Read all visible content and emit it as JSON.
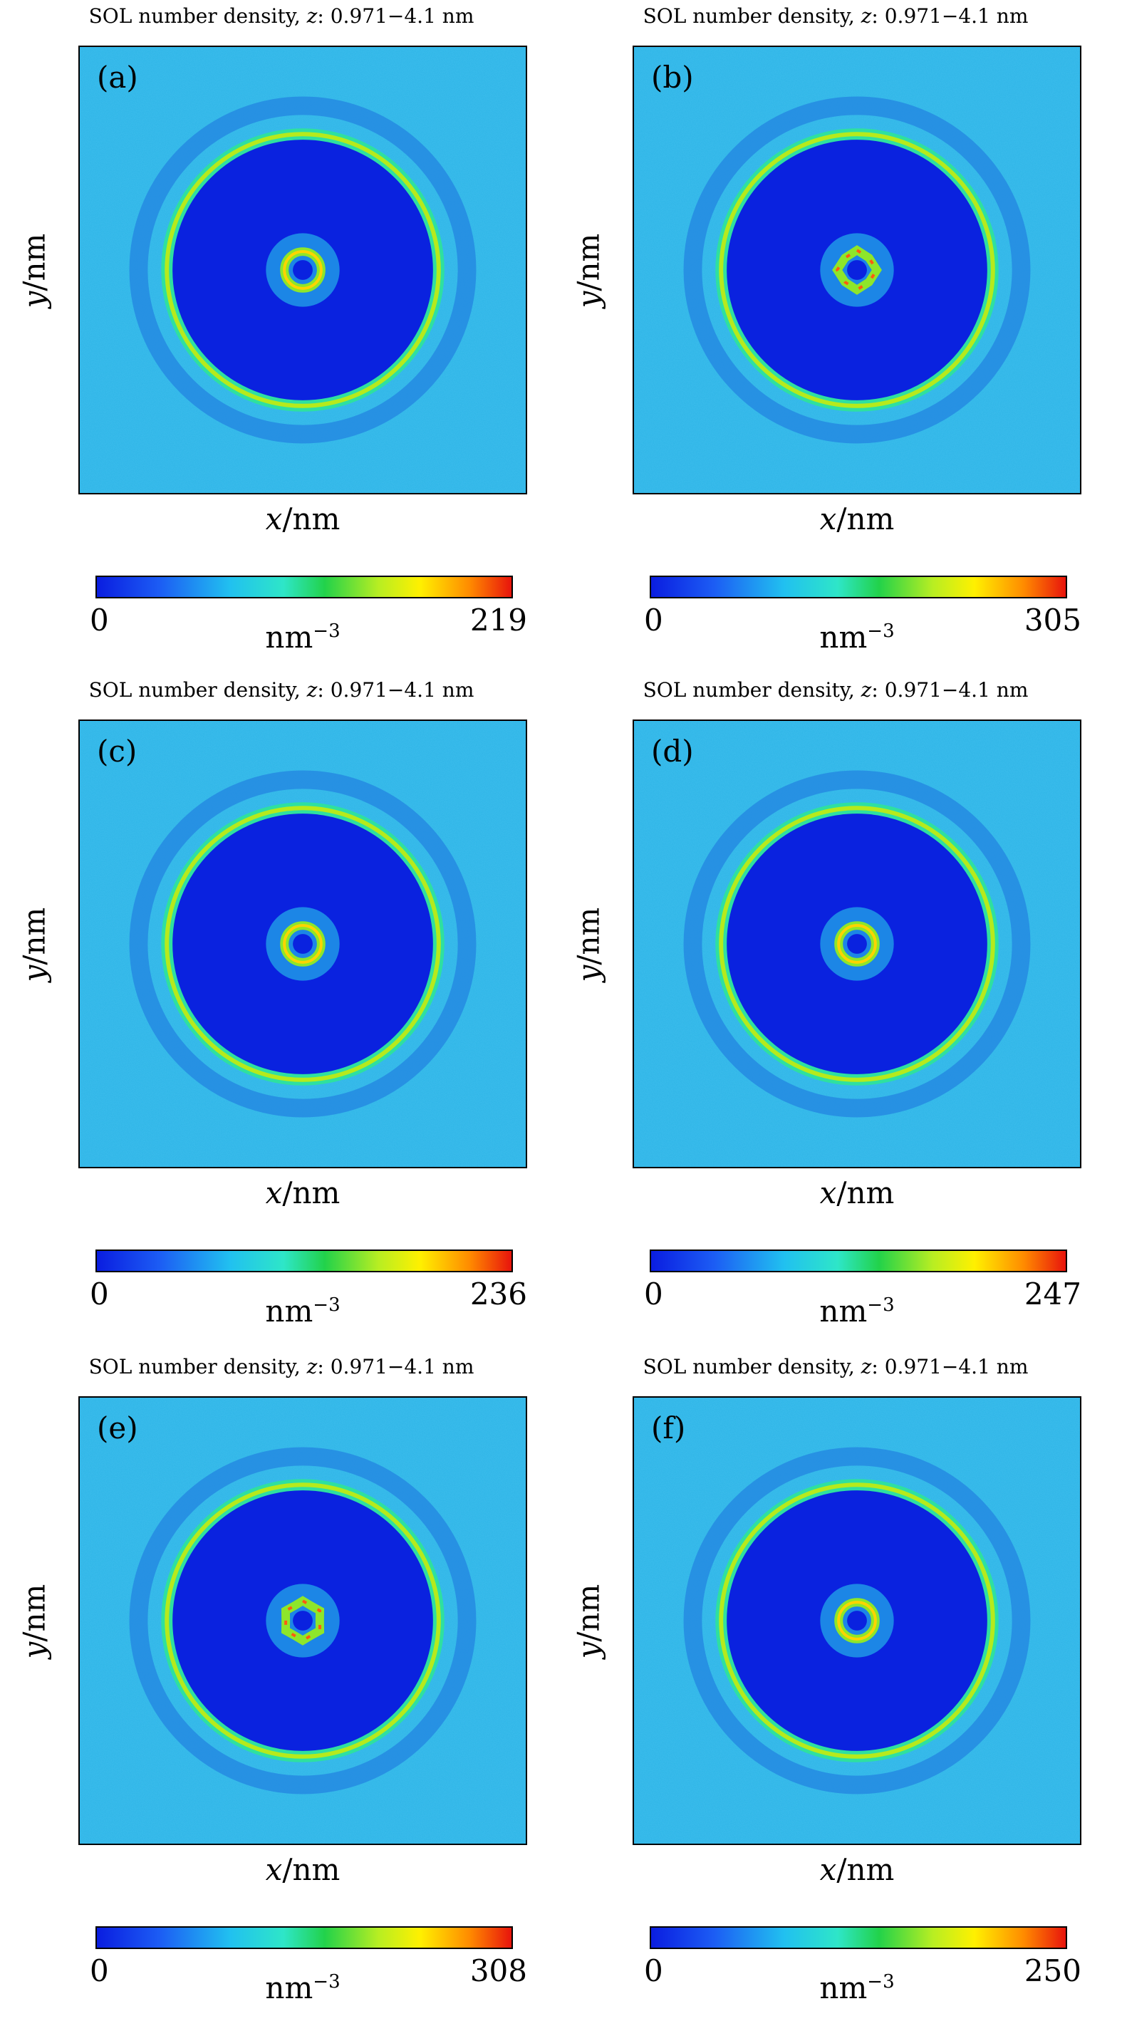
{
  "chart_data": [
    {
      "type": "heatmap",
      "panel_label": "(a)",
      "title_prefix": "SOL number density, ",
      "title_var": "z",
      "title_suffix": ": 0.971−4.1 nm",
      "x_var": "x",
      "x_unit": "/nm",
      "y_var": "y",
      "y_unit": "/nm",
      "colorbar": {
        "min": "0",
        "max": "219",
        "unit": "nm",
        "unit_exp": "−3"
      },
      "inner_ring": {
        "shape": "circle",
        "peaks": 0
      }
    },
    {
      "type": "heatmap",
      "panel_label": "(b)",
      "title_prefix": "SOL number density, ",
      "title_var": "z",
      "title_suffix": ": 0.971−4.1 nm",
      "x_var": "x",
      "x_unit": "/nm",
      "y_var": "y",
      "y_unit": "/nm",
      "colorbar": {
        "min": "0",
        "max": "305",
        "unit": "nm",
        "unit_exp": "−3"
      },
      "inner_ring": {
        "shape": "polygon",
        "peaks": 4
      }
    },
    {
      "type": "heatmap",
      "panel_label": "(c)",
      "title_prefix": "SOL number density, ",
      "title_var": "z",
      "title_suffix": ": 0.971−4.1 nm",
      "x_var": "x",
      "x_unit": "/nm",
      "y_var": "y",
      "y_unit": "/nm",
      "colorbar": {
        "min": "0",
        "max": "236",
        "unit": "nm",
        "unit_exp": "−3"
      },
      "inner_ring": {
        "shape": "circle",
        "peaks": 0
      }
    },
    {
      "type": "heatmap",
      "panel_label": "(d)",
      "title_prefix": "SOL number density, ",
      "title_var": "z",
      "title_suffix": ": 0.971−4.1 nm",
      "x_var": "x",
      "x_unit": "/nm",
      "y_var": "y",
      "y_unit": "/nm",
      "colorbar": {
        "min": "0",
        "max": "247",
        "unit": "nm",
        "unit_exp": "−3"
      },
      "inner_ring": {
        "shape": "circle",
        "peaks": 0
      }
    },
    {
      "type": "heatmap",
      "panel_label": "(e)",
      "title_prefix": "SOL number density, ",
      "title_var": "z",
      "title_suffix": ": 0.971−4.1 nm",
      "x_var": "x",
      "x_unit": "/nm",
      "y_var": "y",
      "y_unit": "/nm",
      "colorbar": {
        "min": "0",
        "max": "308",
        "unit": "nm",
        "unit_exp": "−3"
      },
      "inner_ring": {
        "shape": "polygon",
        "peaks": 6
      }
    },
    {
      "type": "heatmap",
      "panel_label": "(f)",
      "title_prefix": "SOL number density, ",
      "title_var": "z",
      "title_suffix": ": 0.971−4.1 nm",
      "x_var": "x",
      "x_unit": "/nm",
      "y_var": "y",
      "y_unit": "/nm",
      "colorbar": {
        "min": "0",
        "max": "250",
        "unit": "nm",
        "unit_exp": "−3"
      },
      "inner_ring": {
        "shape": "circle",
        "peaks": 0
      }
    }
  ]
}
